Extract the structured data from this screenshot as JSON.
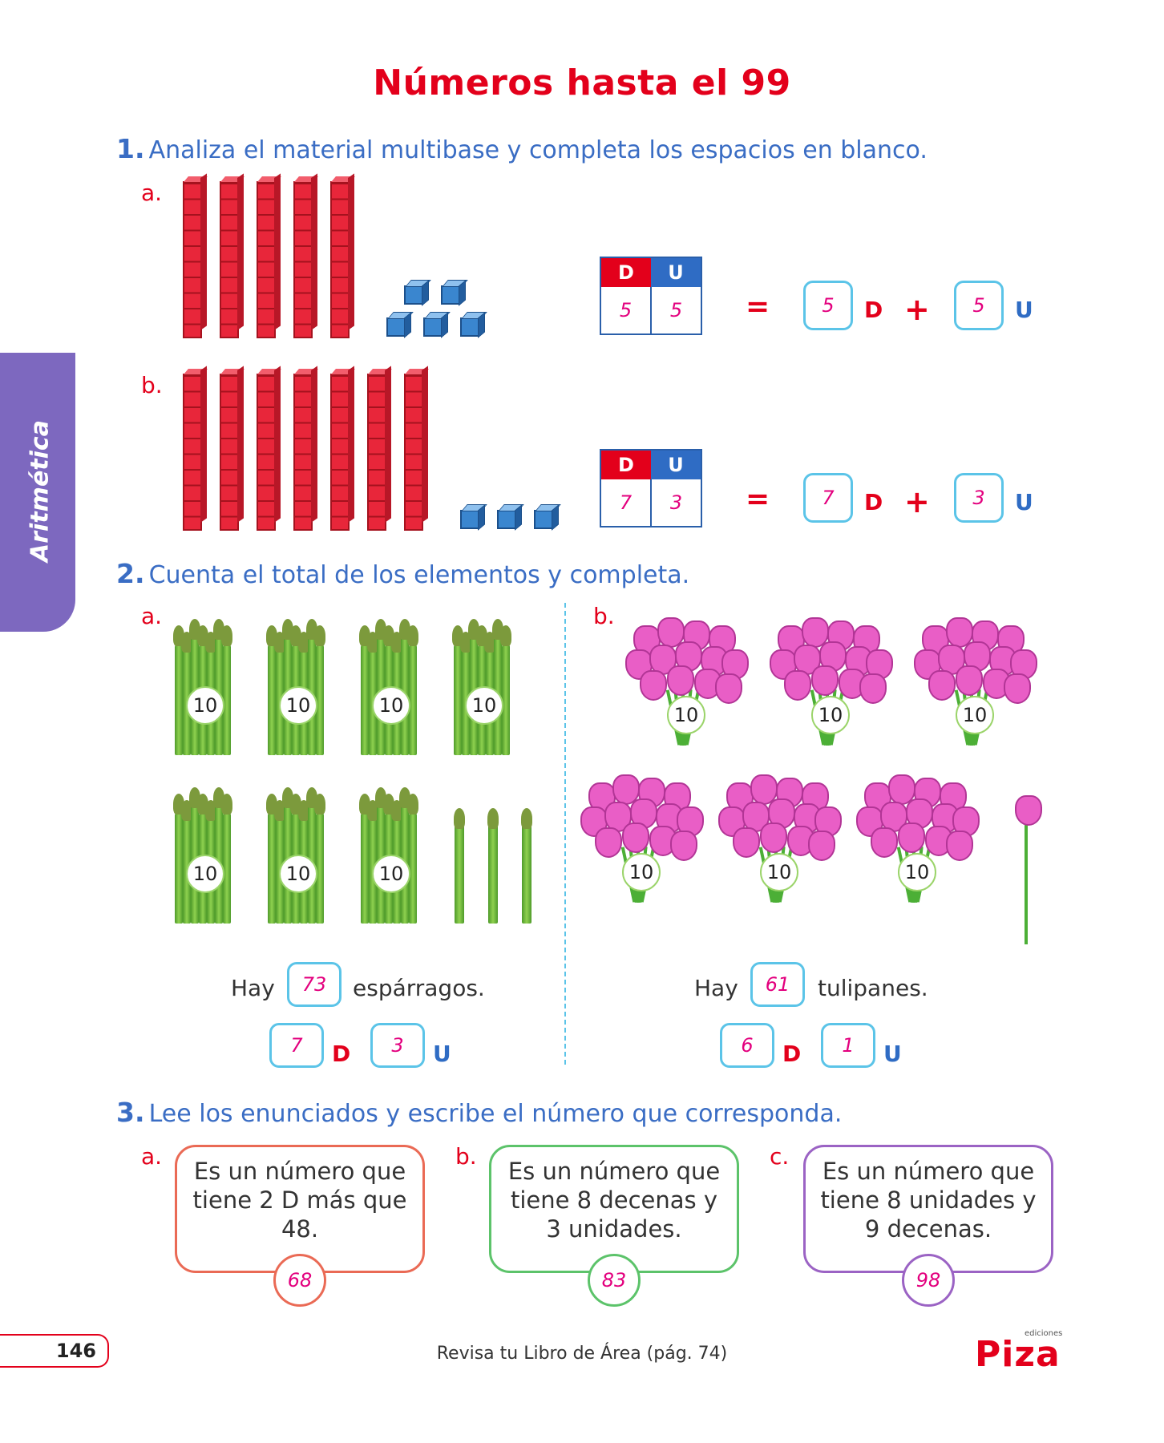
{
  "page_title": "Números hasta el 99",
  "side_tab": "Aritmética",
  "q1": {
    "num": "1.",
    "text": "Analiza el material multibase y completa los espacios en blanco.",
    "a": {
      "label": "a.",
      "tens": 5,
      "units": 5,
      "D": "5",
      "U": "5",
      "box_d": "5",
      "box_u": "5"
    },
    "b": {
      "label": "b.",
      "tens": 7,
      "units": 3,
      "D": "7",
      "U": "3",
      "box_d": "7",
      "box_u": "3"
    },
    "head_d": "D",
    "head_u": "U",
    "equals": "=",
    "plus": "+",
    "letter_d": "D",
    "letter_u": "U"
  },
  "q2": {
    "num": "2.",
    "text": "Cuenta el total de los elementos y completa.",
    "a": {
      "label": "a.",
      "bundle_tag": "10",
      "bundles": 7,
      "singles": 3,
      "hay": "Hay",
      "total": "73",
      "noun": "espárragos.",
      "d": "7",
      "u": "3"
    },
    "b": {
      "label": "b.",
      "bundle_tag": "10",
      "bundles": 6,
      "singles": 1,
      "hay": "Hay",
      "total": "61",
      "noun": "tulipanes.",
      "d": "6",
      "u": "1"
    },
    "letter_d": "D",
    "letter_u": "U"
  },
  "q3": {
    "num": "3.",
    "text": "Lee los enunciados y escribe el número que corresponda.",
    "cards": [
      {
        "label": "a.",
        "lines": [
          "Es un número que",
          "tiene 2 D más que",
          "48."
        ],
        "answer": "68",
        "color": "#ea6a55"
      },
      {
        "label": "b.",
        "lines": [
          "Es un número que",
          "tiene 8 decenas y",
          "3 unidades."
        ],
        "answer": "83",
        "color": "#5cc36a"
      },
      {
        "label": "c.",
        "lines": [
          "Es un número que",
          "tiene 8 unidades y",
          "9 decenas."
        ],
        "answer": "98",
        "color": "#9b63c4"
      }
    ]
  },
  "footer": {
    "page": "146",
    "note": "Revisa tu Libro de Área (pág. 74)",
    "logo": "Piza",
    "logo_small": "ediciones"
  }
}
